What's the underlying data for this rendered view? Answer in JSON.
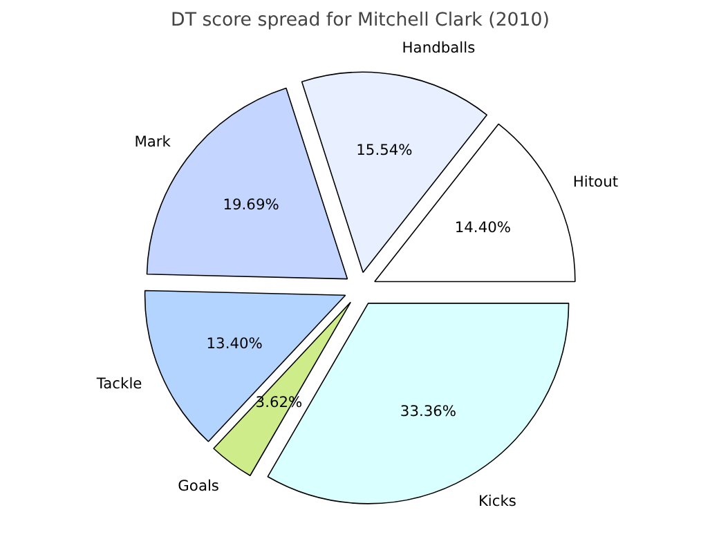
{
  "chart_data": {
    "type": "pie",
    "title": "DT score spread for Mitchell Clark (2010)",
    "categories": [
      "Hitout",
      "Handballs",
      "Mark",
      "Tackle",
      "Goals",
      "Kicks"
    ],
    "values": [
      14.4,
      15.54,
      19.69,
      13.4,
      3.62,
      33.36
    ],
    "value_labels": [
      "14.40%",
      "15.54%",
      "19.69%",
      "13.40%",
      "3.62%",
      "33.36%"
    ],
    "colors": [
      "#ffffff",
      "#e8f0ff",
      "#c4d6ff",
      "#b3d4ff",
      "#cfec8a",
      "#d9ffff"
    ]
  }
}
